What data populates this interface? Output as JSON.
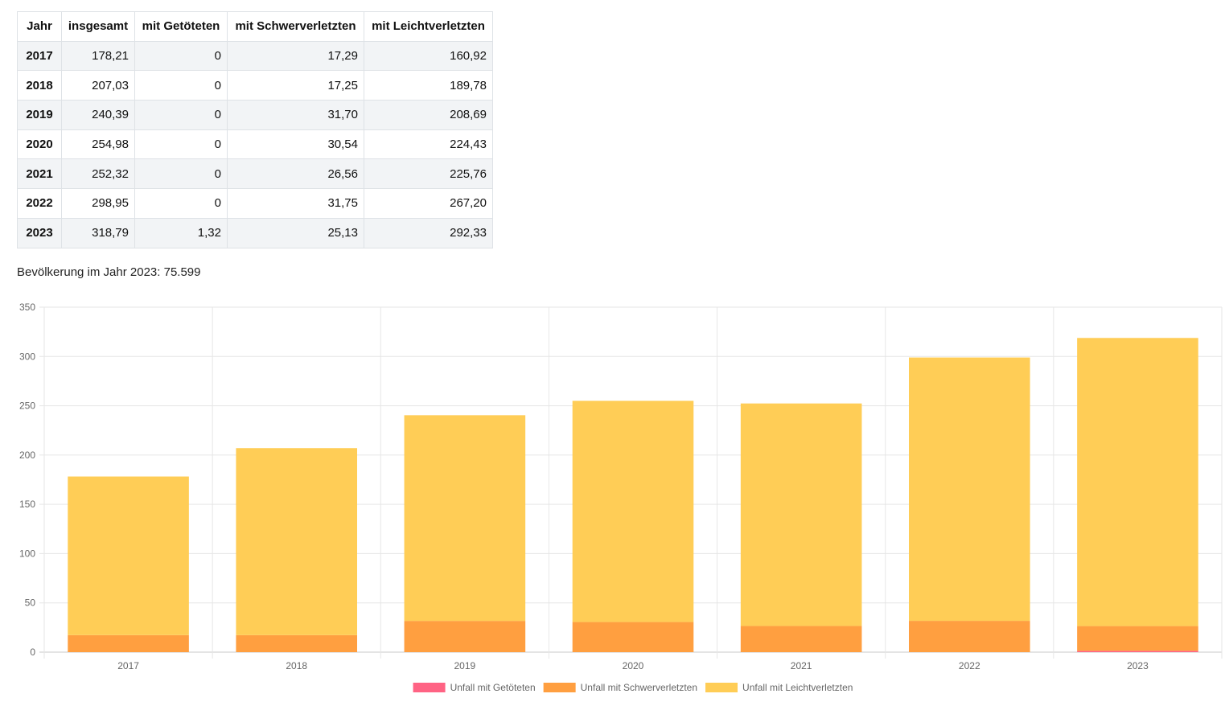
{
  "table": {
    "headers": [
      "Jahr",
      "insgesamt",
      "mit Getöteten",
      "mit Schwerverletzten",
      "mit Leichtverletzten"
    ],
    "rows": [
      [
        "2017",
        "178,21",
        "0",
        "17,29",
        "160,92"
      ],
      [
        "2018",
        "207,03",
        "0",
        "17,25",
        "189,78"
      ],
      [
        "2019",
        "240,39",
        "0",
        "31,70",
        "208,69"
      ],
      [
        "2020",
        "254,98",
        "0",
        "30,54",
        "224,43"
      ],
      [
        "2021",
        "252,32",
        "0",
        "26,56",
        "225,76"
      ],
      [
        "2022",
        "298,95",
        "0",
        "31,75",
        "267,20"
      ],
      [
        "2023",
        "318,79",
        "1,32",
        "25,13",
        "292,33"
      ]
    ]
  },
  "population": {
    "label": "Bevölkerung im Jahr 2023:",
    "value": "75.599"
  },
  "chart_data": {
    "type": "bar",
    "stacked": true,
    "categories": [
      "2017",
      "2018",
      "2019",
      "2020",
      "2021",
      "2022",
      "2023"
    ],
    "series": [
      {
        "name": "Unfall mit Getöteten",
        "color": "#ff6384",
        "values": [
          0,
          0,
          0,
          0,
          0,
          0,
          1.32
        ]
      },
      {
        "name": "Unfall mit Schwerverletzten",
        "color": "#ff9f40",
        "values": [
          17.29,
          17.25,
          31.7,
          30.54,
          26.56,
          31.75,
          25.13
        ]
      },
      {
        "name": "Unfall mit Leichtverletzten",
        "color": "#ffcd56",
        "values": [
          160.92,
          189.78,
          208.69,
          224.43,
          225.76,
          267.2,
          292.33
        ]
      }
    ],
    "y_ticks": [
      "0",
      "50",
      "100",
      "150",
      "200",
      "250",
      "300",
      "350"
    ],
    "ylim": [
      0,
      350
    ],
    "grid": true,
    "legend_position": "bottom"
  }
}
